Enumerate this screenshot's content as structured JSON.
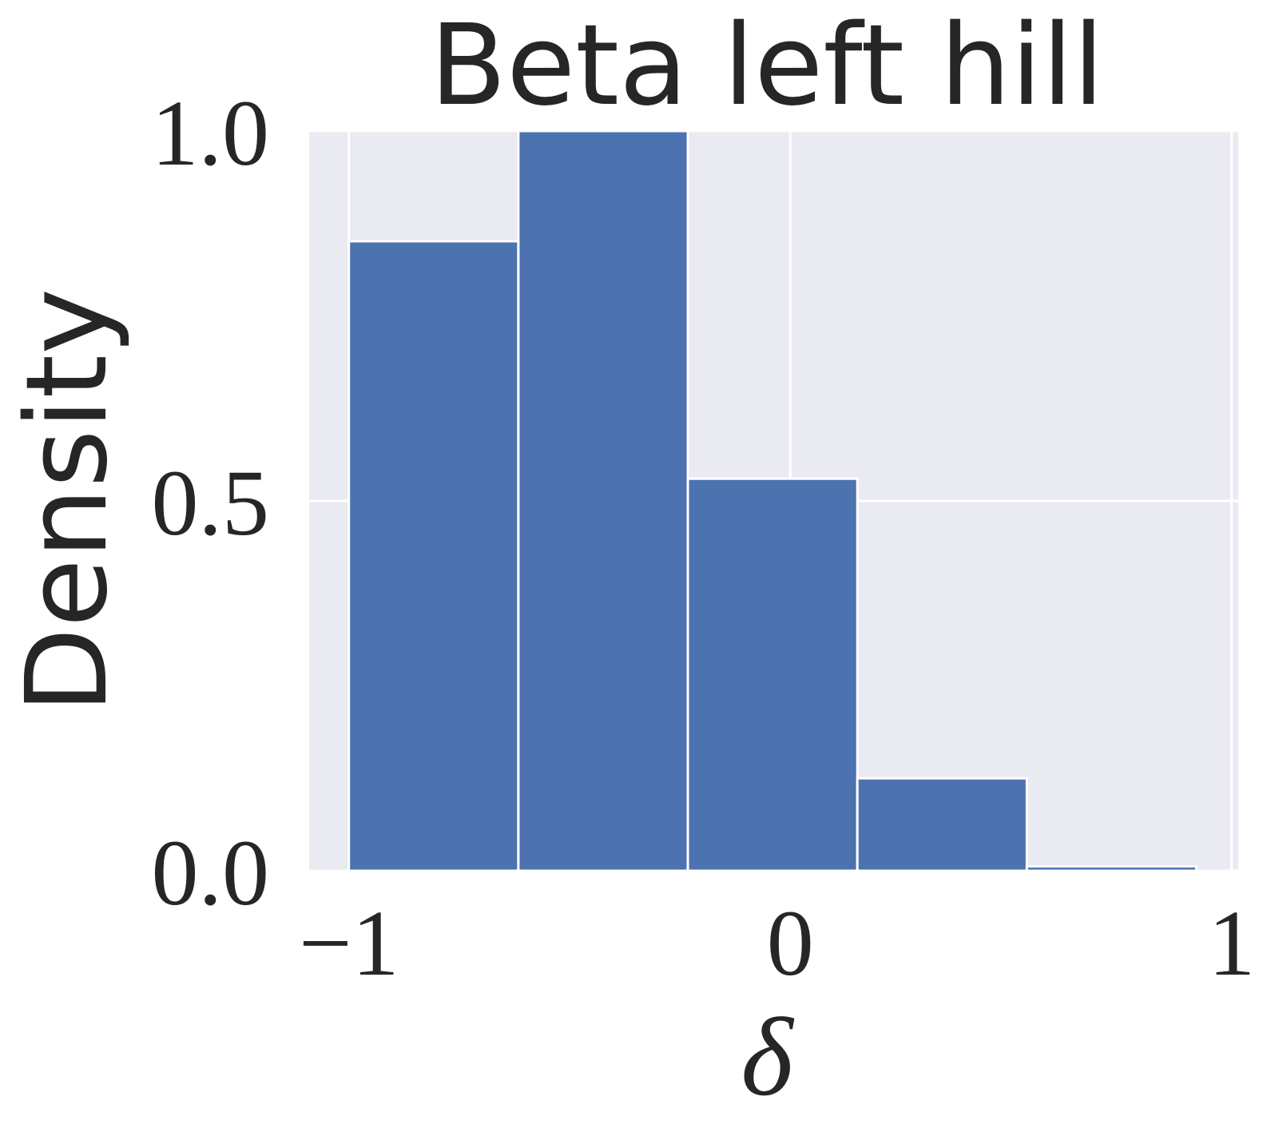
{
  "chart_data": {
    "type": "histogram",
    "title": "Beta left hill",
    "xlabel": "δ",
    "ylabel": "Density",
    "bins": [
      -1,
      -0.616,
      -0.232,
      0.152,
      0.536,
      0.92
    ],
    "values": [
      0.851,
      1.0,
      0.53,
      0.125,
      0.006
    ],
    "color": "#4c72b0",
    "background": "#eaeaf2",
    "grid": true,
    "xlim": [
      -1.09,
      1.015
    ],
    "xticks": [
      {
        "value": -1,
        "label": "−1"
      },
      0,
      1
    ],
    "ylim": [
      0,
      1.0
    ],
    "yticks": [
      {
        "value": 0,
        "label": "0.0"
      },
      {
        "value": 0.5,
        "label": "0.5"
      },
      {
        "value": 1.0,
        "label": "1.0"
      }
    ]
  }
}
